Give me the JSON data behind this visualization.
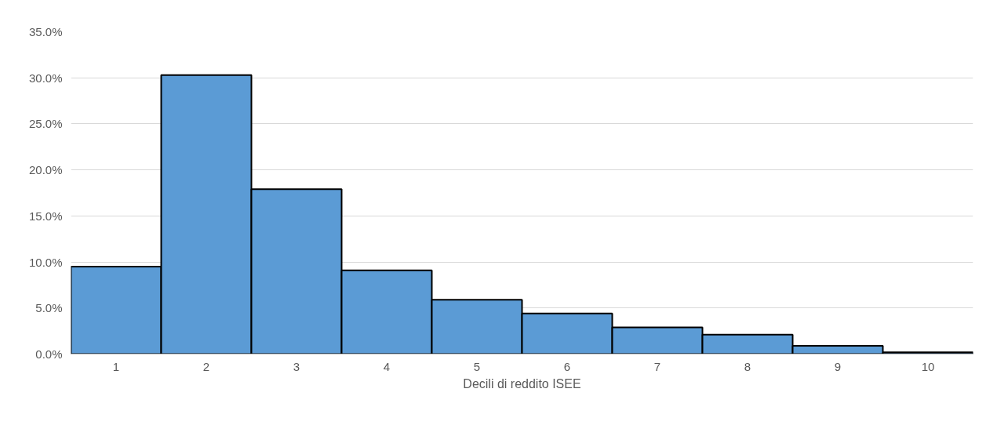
{
  "chart_data": {
    "type": "bar",
    "xlabel": "Decili di reddito ISEE",
    "categories": [
      "1",
      "2",
      "3",
      "4",
      "5",
      "6",
      "7",
      "8",
      "9",
      "10"
    ],
    "values": [
      9.5,
      30.3,
      17.9,
      9.1,
      5.9,
      4.4,
      2.9,
      2.1,
      0.9,
      0.2
    ],
    "color": "#5b9bd5",
    "ylim": [
      0,
      35
    ],
    "yticks": [
      {
        "value": 0,
        "label": "0.0%"
      },
      {
        "value": 5,
        "label": "5.0%"
      },
      {
        "value": 10,
        "label": "10.0%"
      },
      {
        "value": 15,
        "label": "15.0%"
      },
      {
        "value": 20,
        "label": "20.0%"
      },
      {
        "value": 25,
        "label": "25.0%"
      },
      {
        "value": 30,
        "label": "30.0%"
      },
      {
        "value": 35,
        "label": "35.0%"
      }
    ],
    "grid": "y"
  }
}
